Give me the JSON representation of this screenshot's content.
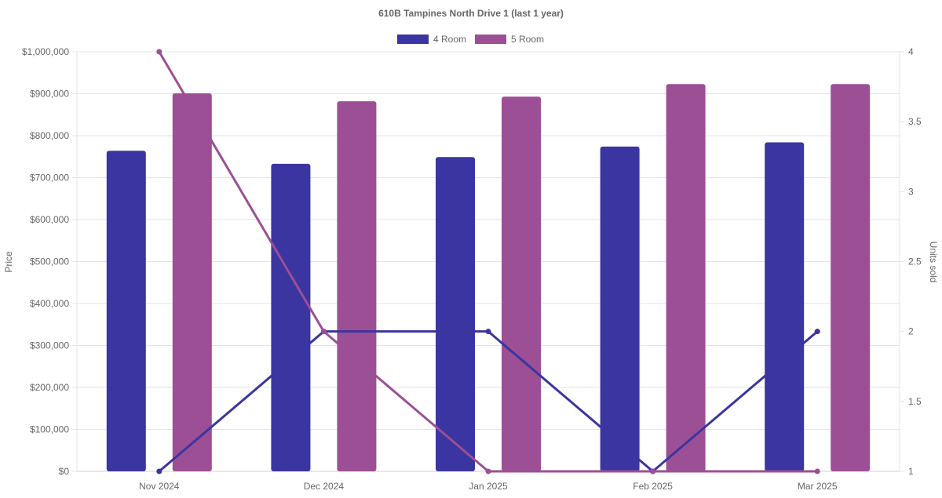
{
  "chart_data": {
    "type": "bar",
    "title": "610B Tampines North Drive 1 (last 1 year)",
    "categories": [
      "Nov 2024",
      "Dec 2024",
      "Jan 2025",
      "Feb 2025",
      "Mar 2025"
    ],
    "ylabel": "Price",
    "y2label": "Units sold",
    "ylim": [
      0,
      1000000
    ],
    "y2lim": [
      1,
      4
    ],
    "yticks": [
      "$0",
      "$100,000",
      "$200,000",
      "$300,000",
      "$400,000",
      "$500,000",
      "$600,000",
      "$700,000",
      "$800,000",
      "$900,000",
      "$1,000,000"
    ],
    "y2ticks": [
      "1",
      "1.5",
      "2",
      "2.5",
      "3",
      "3.5",
      "4"
    ],
    "grid": true,
    "legend_position": "top-center",
    "series": [
      {
        "name": "4 Room",
        "color": "#3a35a0",
        "values": [
          764000,
          733000,
          749000,
          774000,
          784000
        ],
        "units": [
          1,
          2,
          2,
          1,
          2
        ]
      },
      {
        "name": "5 Room",
        "color": "#9c4f95",
        "values": [
          901000,
          882000,
          893000,
          923000,
          923000
        ],
        "units": [
          4,
          2,
          1,
          1,
          1
        ]
      }
    ]
  }
}
